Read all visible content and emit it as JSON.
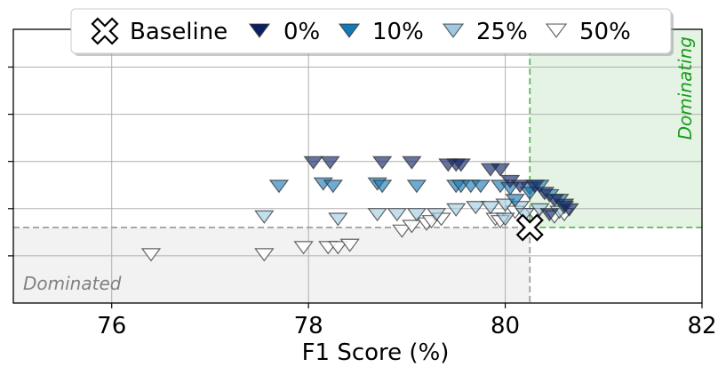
{
  "chart_data": {
    "type": "scatter",
    "xlabel": "F1 Score (%)",
    "ylabel": "",
    "xlim": [
      75,
      82
    ],
    "ylim": [
      0,
      5.8
    ],
    "x_ticks": [
      76,
      78,
      80,
      82
    ],
    "x_tick_labels": [
      "76",
      "78",
      "80",
      "82"
    ],
    "y_ticks": [
      1,
      2,
      3,
      4,
      5
    ],
    "grid": true,
    "legend_position": "top-center",
    "baseline": {
      "name": "Baseline",
      "x": 80.25,
      "y": 1.6,
      "marker": "X"
    },
    "regions": {
      "dominated": {
        "label": "Dominated",
        "color": "#bdbdbd"
      },
      "dominating": {
        "label": "Dominating",
        "color": "#2ca02c"
      }
    },
    "series": [
      {
        "name": "0%",
        "color": "#0b1f65",
        "marker": "triangle-down",
        "points": [
          [
            78.05,
            3.0
          ],
          [
            78.22,
            3.0
          ],
          [
            78.75,
            3.0
          ],
          [
            79.05,
            3.0
          ],
          [
            79.42,
            2.95
          ],
          [
            79.5,
            2.95
          ],
          [
            79.55,
            2.95
          ],
          [
            79.85,
            2.85
          ],
          [
            79.95,
            2.85
          ],
          [
            80.05,
            2.6
          ],
          [
            80.15,
            2.5
          ],
          [
            80.3,
            2.5
          ],
          [
            80.4,
            2.35
          ],
          [
            80.5,
            2.2
          ],
          [
            80.6,
            2.1
          ],
          [
            80.65,
            2.0
          ],
          [
            80.45,
            1.9
          ]
        ]
      },
      {
        "name": "10%",
        "color": "#1578b7",
        "marker": "triangle-down",
        "points": [
          [
            77.7,
            2.5
          ],
          [
            78.15,
            2.55
          ],
          [
            78.25,
            2.5
          ],
          [
            78.7,
            2.55
          ],
          [
            78.75,
            2.5
          ],
          [
            79.1,
            2.5
          ],
          [
            79.5,
            2.5
          ],
          [
            79.55,
            2.5
          ],
          [
            79.65,
            2.5
          ],
          [
            79.75,
            2.5
          ],
          [
            79.95,
            2.5
          ],
          [
            80.05,
            2.45
          ],
          [
            80.25,
            2.45
          ],
          [
            80.35,
            2.5
          ],
          [
            80.45,
            2.3
          ],
          [
            80.55,
            2.2
          ],
          [
            80.6,
            2.05
          ],
          [
            80.25,
            2.35
          ],
          [
            80.1,
            2.2
          ]
        ]
      },
      {
        "name": "25%",
        "color": "#9ecae1",
        "marker": "triangle-down",
        "points": [
          [
            77.55,
            1.85
          ],
          [
            78.3,
            1.8
          ],
          [
            78.7,
            1.9
          ],
          [
            78.9,
            1.9
          ],
          [
            79.1,
            1.9
          ],
          [
            79.3,
            1.9
          ],
          [
            79.5,
            2.0
          ],
          [
            79.7,
            2.05
          ],
          [
            79.85,
            2.05
          ],
          [
            80.0,
            2.1
          ],
          [
            80.15,
            2.05
          ],
          [
            80.35,
            2.0
          ],
          [
            80.55,
            1.95
          ],
          [
            80.0,
            1.8
          ],
          [
            80.2,
            1.9
          ]
        ]
      },
      {
        "name": "50%",
        "color": "#ffffff",
        "marker": "triangle-down",
        "points": [
          [
            76.4,
            1.05
          ],
          [
            77.55,
            1.05
          ],
          [
            77.95,
            1.2
          ],
          [
            78.2,
            1.2
          ],
          [
            78.3,
            1.2
          ],
          [
            78.42,
            1.25
          ],
          [
            78.95,
            1.55
          ],
          [
            79.05,
            1.65
          ],
          [
            79.2,
            1.7
          ],
          [
            79.25,
            1.75
          ],
          [
            79.35,
            1.8
          ],
          [
            79.9,
            1.8
          ],
          [
            80.1,
            1.95
          ],
          [
            80.3,
            1.9
          ],
          [
            80.5,
            1.85
          ],
          [
            80.6,
            1.9
          ],
          [
            79.95,
            1.75
          ]
        ]
      }
    ]
  }
}
